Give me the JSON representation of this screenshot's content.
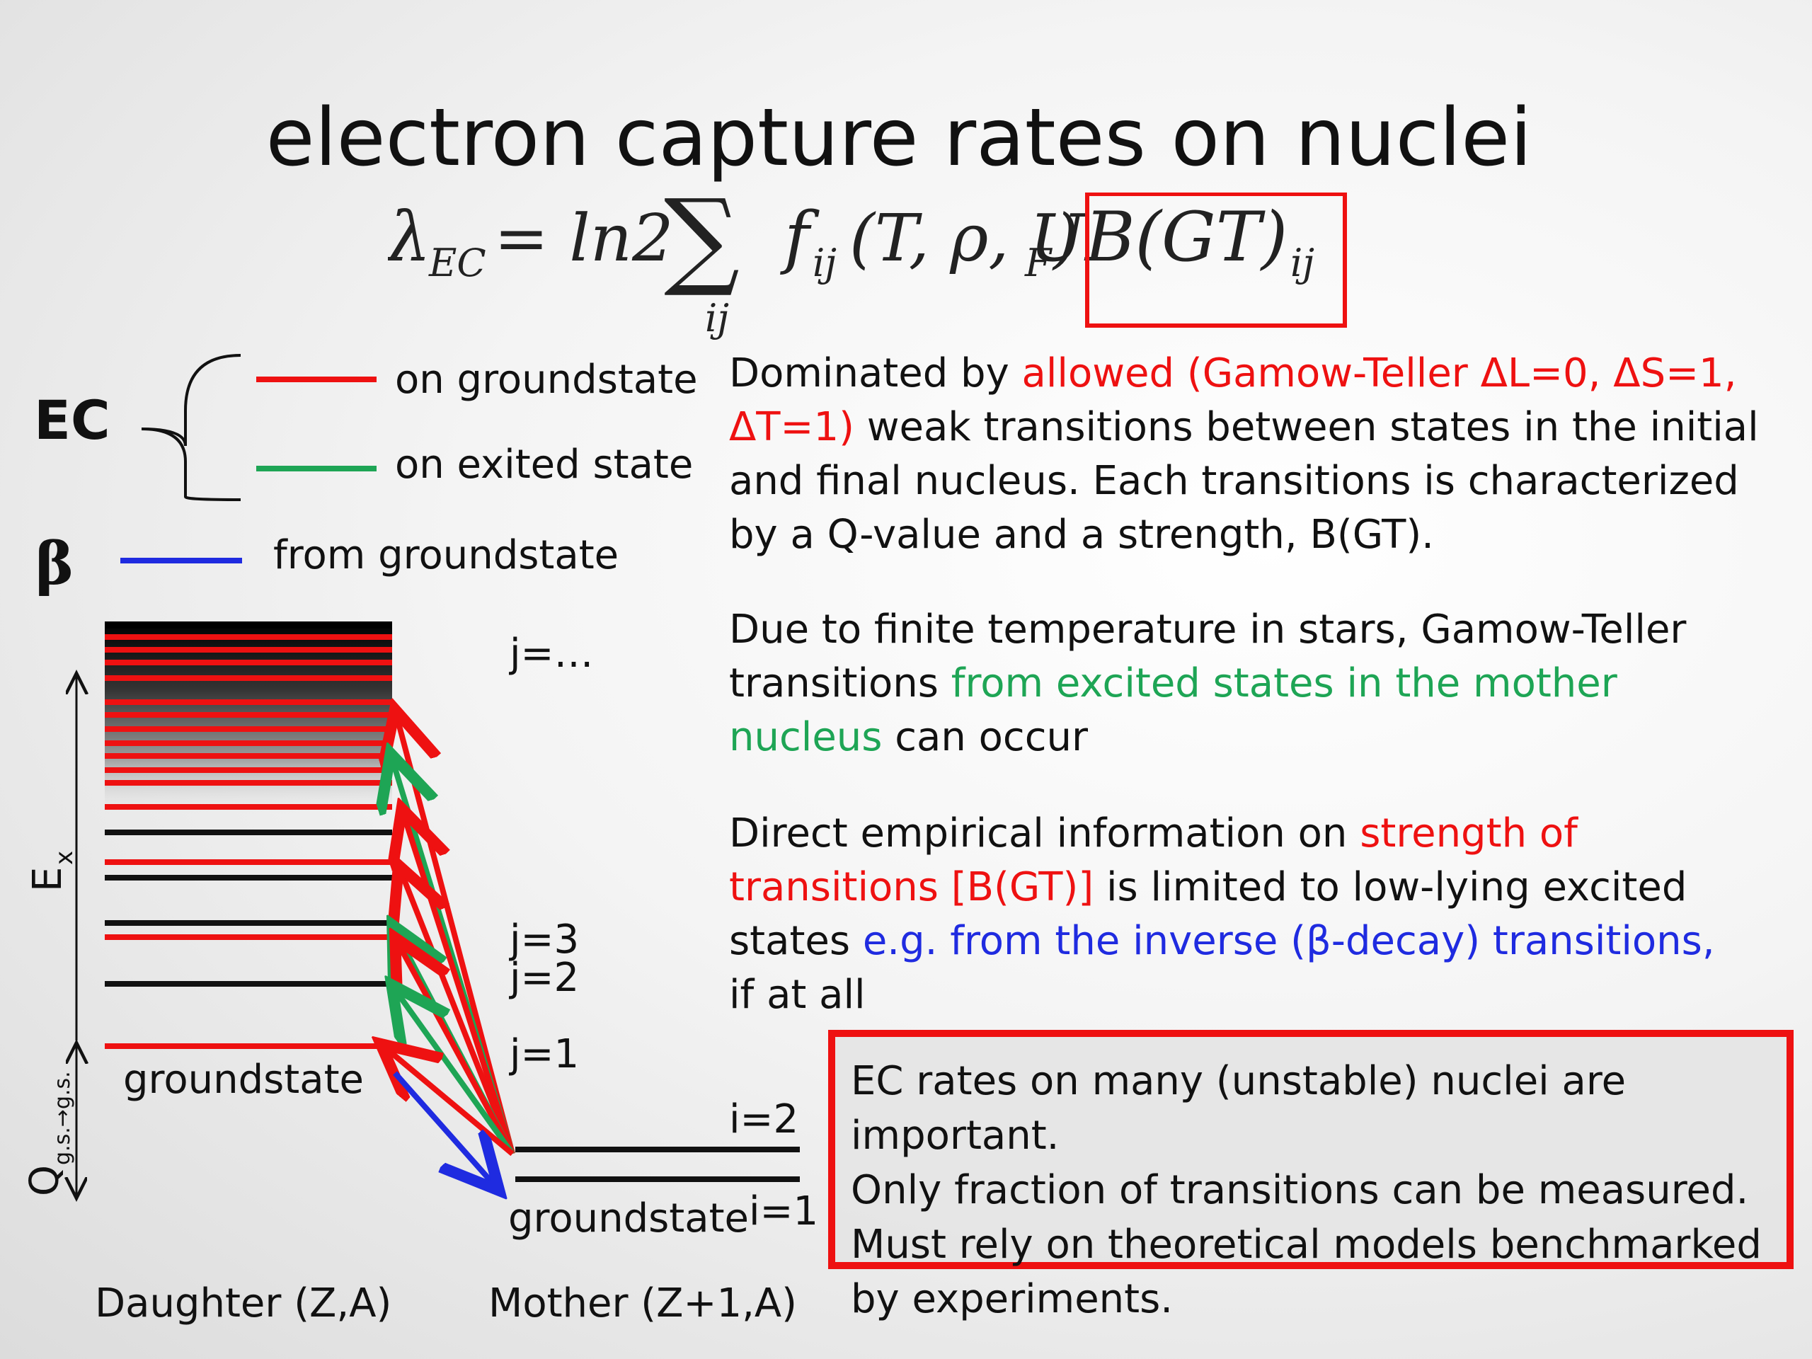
{
  "title": "electron capture rates on nuclei",
  "formula": {
    "lhs": "λ",
    "lhs_sub": "EC",
    "rhs_start": " = ln2",
    "sum_symbol": "∑",
    "sum_index": "ij",
    "f": "f",
    "f_sub": "ij",
    "f_args": "(T, ρ, U",
    "f_args_sub": "F",
    "f_close": ")",
    "bgt": "B(GT)",
    "bgt_sub": "ij"
  },
  "legend": {
    "ec_label": "EC",
    "ec_groundstate": "on groundstate",
    "ec_excited": "on exited state",
    "beta_label": "β",
    "beta_groundstate": "from groundstate"
  },
  "colors": {
    "ec_groundstate": "#ee1111",
    "ec_excited": "#1ea555",
    "beta": "#1f2be0",
    "level": "#111111"
  },
  "paragraphs": {
    "p1": {
      "a": "Dominated by ",
      "b": "allowed (Gamow-Teller ΔL=0, ΔS=1, ΔT=1)",
      "c": " weak transitions between states in the initial and final nucleus. Each transitions is characterized by a Q-value and a strength, B(GT)."
    },
    "p2": {
      "a": "Due to finite temperature in stars, Gamow-Teller transitions ",
      "b": "from excited states in the mother nucleus",
      "c": " can occur"
    },
    "p3": {
      "a": "Direct empirical information on ",
      "b": "strength of transitions [B(GT)]",
      "c": " is limited to low-lying excited states ",
      "d": "e.g. from the inverse (β-decay) transitions,",
      "e": " if at all"
    }
  },
  "conclusion": {
    "line1": "EC rates on many (unstable) nuclei are important.",
    "line2": "Only fraction of transitions can be measured.",
    "line3": "Must rely on theoretical models benchmarked by experiments."
  },
  "diagram": {
    "j_dots": "j=…",
    "j3": "j=3",
    "j2": "j=2",
    "j1": "j=1",
    "i2": "i=2",
    "i1": "i=1",
    "daughter_groundstate": "groundstate",
    "mother_groundstate": "groundstate",
    "ex_label": "E",
    "ex_sub": "x",
    "q_label": "Q",
    "q_sub": "g.s.→g.s.",
    "daughter": "Daughter (Z,A)",
    "mother": "Mother (Z+1,A)"
  }
}
